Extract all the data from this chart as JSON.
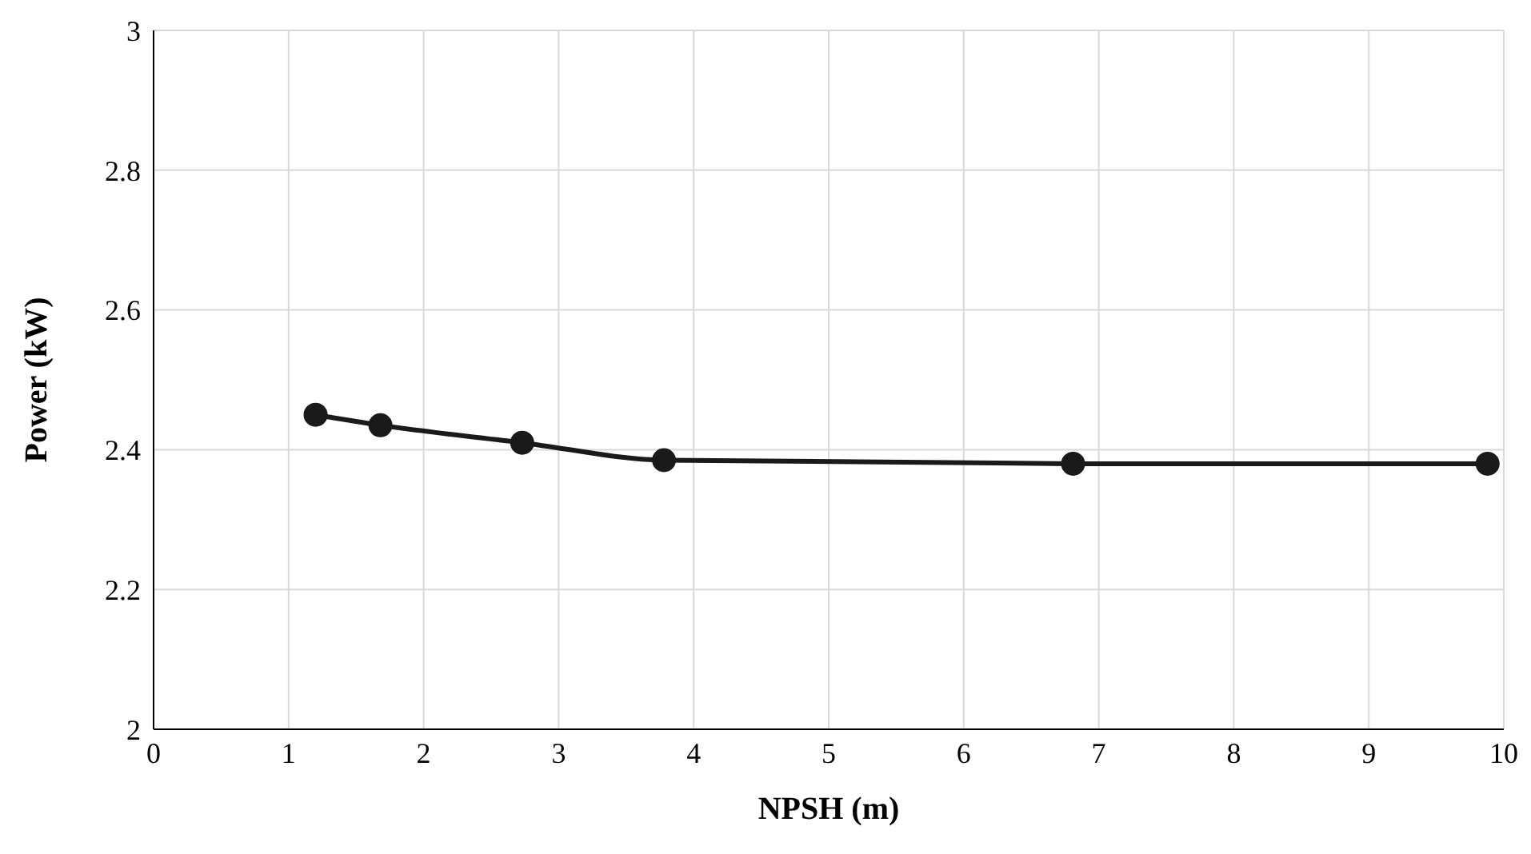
{
  "chart_data": {
    "type": "line",
    "xlabel": "NPSH (m)",
    "ylabel": "Power (kW)",
    "xlim": [
      0,
      10
    ],
    "xticks": [
      0,
      1,
      2,
      3,
      4,
      5,
      6,
      7,
      8,
      9,
      10
    ],
    "ylim": [
      2,
      3
    ],
    "yticks": [
      2,
      2.2,
      2.4,
      2.6,
      2.8,
      3
    ],
    "grid": true,
    "marker": "circle",
    "line_style": "solid",
    "series": [
      {
        "color": "#1a1a1a",
        "x": [
          1.2,
          1.68,
          2.73,
          3.78,
          6.81,
          9.88
        ],
        "values": [
          2.45,
          2.435,
          2.41,
          2.385,
          2.38,
          2.38
        ]
      }
    ]
  }
}
